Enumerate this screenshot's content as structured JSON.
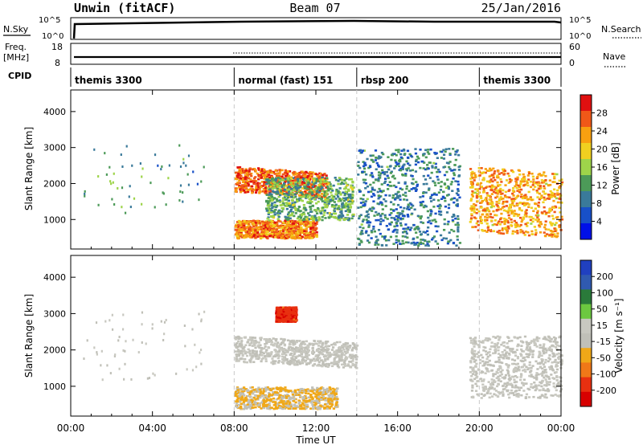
{
  "header": {
    "station": "Unwin (fitACF)",
    "beam": "Beam 07",
    "date": "25/Jan/2016"
  },
  "strips": {
    "nsky_label": "N.Sky",
    "nsearch_label": "N.Search",
    "nsky_ticks": [
      "10^5",
      "10^0"
    ],
    "nsky_ticks_right": [
      "10^5",
      "10^0"
    ],
    "freq_label": "Freq.",
    "freq_unit": "[MHz]",
    "freq_ticks": [
      "18",
      "8"
    ],
    "nave_label": "Nave",
    "nave_ticks": [
      "60",
      "0"
    ],
    "cpid_label": "CPID"
  },
  "modes": [
    {
      "label": "themis 3300",
      "start": 0.0,
      "end": 8.0
    },
    {
      "label": "normal (fast) 151",
      "start": 8.0,
      "end": 14.0
    },
    {
      "label": "rbsp 200",
      "start": 14.0,
      "end": 20.0
    },
    {
      "label": "themis 3300",
      "start": 20.0,
      "end": 24.0
    }
  ],
  "x_axis": {
    "label": "Time UT",
    "ticks": [
      "00:00",
      "04:00",
      "08:00",
      "12:00",
      "16:00",
      "20:00",
      "00:00"
    ],
    "range_hours": [
      0,
      24
    ]
  },
  "colors": {
    "power_scale": [
      "#0010e8",
      "#1850c8",
      "#3a7a9a",
      "#4c9a58",
      "#9ed44a",
      "#f0d020",
      "#f8a010",
      "#f05818",
      "#e01010"
    ],
    "velocity_scale": [
      "#2040c0",
      "#305ab0",
      "#2a7a3a",
      "#6cc840",
      "#c8c8c0",
      "#c0c0b8",
      "#f0a818",
      "#f07818",
      "#e83010",
      "#d80000"
    ]
  },
  "chart_data": [
    {
      "type": "heatmap",
      "title": "Power",
      "xlabel": "Time UT",
      "ylabel": "Slant Range [km]",
      "xlim": [
        0,
        24
      ],
      "ylim": [
        180,
        4600
      ],
      "yticks": [
        1000,
        2000,
        3000,
        4000
      ],
      "colorbar": {
        "label": "Power [dB]",
        "ticks": [
          "4",
          "8",
          "12",
          "16",
          "20",
          "24",
          "28"
        ],
        "range": [
          0,
          30
        ]
      },
      "features": [
        {
          "desc": "sparse early echoes",
          "t": [
            0.6,
            6.5
          ],
          "range_km": [
            1200,
            3100
          ],
          "value_db": 10
        },
        {
          "desc": "strong arc",
          "t": [
            8.0,
            12.5
          ],
          "range_km": [
            1800,
            2500
          ],
          "value_db": 26
        },
        {
          "desc": "near-range band",
          "t": [
            8.0,
            12.0
          ],
          "range_km": [
            500,
            1000
          ],
          "value_db": 24
        },
        {
          "desc": "mid blobs",
          "t": [
            9.5,
            13.8
          ],
          "range_km": [
            1000,
            2200
          ],
          "value_db": 12
        },
        {
          "desc": "rbsp scattered",
          "t": [
            14.0,
            19.0
          ],
          "range_km": [
            300,
            3000
          ],
          "value_db": 8
        },
        {
          "desc": "late arcs",
          "t": [
            19.5,
            24.0
          ],
          "range_km": [
            700,
            2500
          ],
          "value_db": 22
        }
      ]
    },
    {
      "type": "heatmap",
      "title": "Velocity",
      "xlabel": "Time UT",
      "ylabel": "Slant Range [km]",
      "xlim": [
        0,
        24
      ],
      "ylim": [
        180,
        4600
      ],
      "yticks": [
        1000,
        2000,
        3000,
        4000
      ],
      "colorbar": {
        "label": "Velocity [m s⁻¹]",
        "ticks": [
          "200",
          "100",
          "50",
          "15",
          "-15",
          "-50",
          "-100",
          "-200"
        ],
        "range": [
          -250,
          250
        ]
      },
      "features": [
        {
          "desc": "sparse early echoes",
          "t": [
            0.6,
            6.5
          ],
          "range_km": [
            1200,
            3100
          ],
          "value_ms": 0
        },
        {
          "desc": "ground scatter band",
          "t": [
            8.0,
            14.0
          ],
          "range_km": [
            1700,
            2400
          ],
          "value_ms": 0
        },
        {
          "desc": "negative near band",
          "t": [
            8.0,
            13.0
          ],
          "range_km": [
            400,
            1000
          ],
          "value_ms": -60
        },
        {
          "desc": "high-range red",
          "t": [
            10.0,
            11.0
          ],
          "range_km": [
            2800,
            3200
          ],
          "value_ms": -200
        },
        {
          "desc": "late grey arcs",
          "t": [
            19.5,
            24.0
          ],
          "range_km": [
            700,
            2400
          ],
          "value_ms": 0
        }
      ]
    }
  ]
}
